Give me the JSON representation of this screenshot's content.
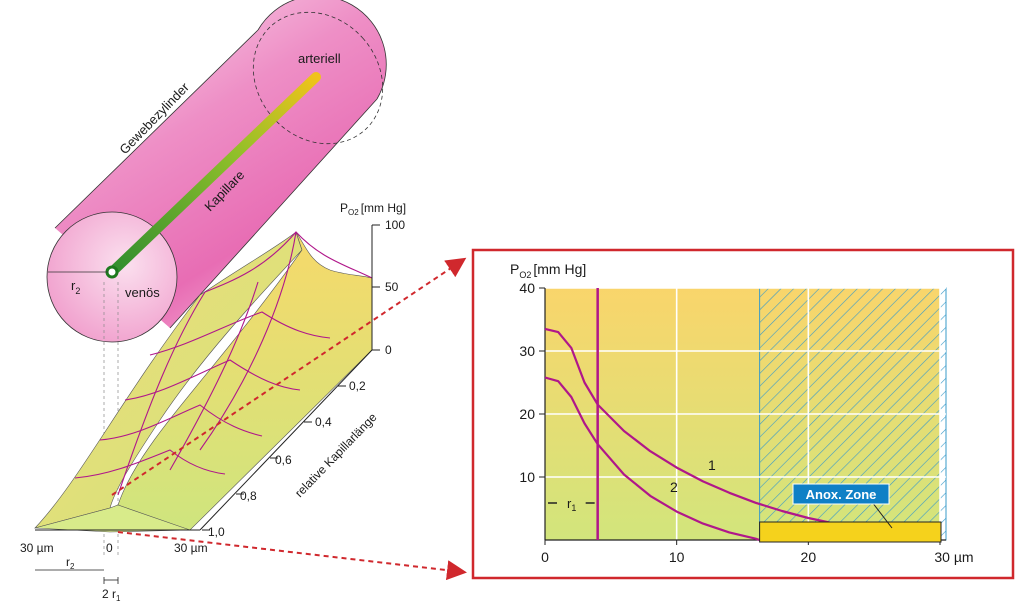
{
  "cylinder": {
    "label_tissue": "Gewebezylinder",
    "label_capillary": "Kapillare",
    "label_arterial": "arteriell",
    "label_venous": "venös",
    "label_r2": "r",
    "label_r2_sub": "2"
  },
  "surface_plot": {
    "z_axis_label_p": "P",
    "z_axis_label_sub": "O2",
    "z_axis_label_unit": "[mm Hg]",
    "z_ticks": [
      "100",
      "50",
      "0"
    ],
    "depth_ticks": [
      "0,2",
      "0,4",
      "0,6",
      "0,8",
      "1,0"
    ],
    "depth_axis_label": "relative Kapillarlänge",
    "x_label_left": "30 µm",
    "x_label_center": "0",
    "x_label_right": "30 µm",
    "r2_label": "r",
    "r2_sub": "2",
    "two_r1_label": "2 r",
    "two_r1_sub": "1"
  },
  "chart_data": {
    "type": "line",
    "ylabel_p": "P",
    "ylabel_sub": "O2",
    "ylabel_unit": "[mm Hg]",
    "y_ticks": [
      "40",
      "30",
      "20",
      "10"
    ],
    "x_ticks": [
      "0",
      "10",
      "20",
      "30 µm"
    ],
    "xlim": [
      0,
      30
    ],
    "ylim": [
      0,
      40
    ],
    "r1_label": "r",
    "r1_sub": "1",
    "r1_x": 4,
    "anox_zone_label": "Anox. Zone",
    "anox_zone_x_start": 16.3,
    "series": [
      {
        "name": "1",
        "x": [
          0,
          1,
          2,
          3,
          4,
          6,
          8,
          10,
          12,
          14,
          16,
          18,
          20,
          22,
          24,
          26,
          28,
          30
        ],
        "values": [
          33.5,
          33,
          30.5,
          25,
          21.5,
          17.3,
          14.1,
          11.5,
          9.3,
          7.5,
          5.9,
          4.6,
          3.5,
          2.6,
          1.8,
          1.1,
          0.5,
          0
        ]
      },
      {
        "name": "2",
        "x": [
          0,
          1,
          2,
          3,
          4,
          6,
          8,
          10,
          12,
          14,
          16,
          16.3
        ],
        "values": [
          25.8,
          25.2,
          22.7,
          18.5,
          15.2,
          10.4,
          7,
          4.5,
          2.6,
          1.2,
          0.2,
          0
        ]
      }
    ],
    "colors": {
      "curve": "#b0178a",
      "anox_badge": "#0f80c6",
      "frame": "#d0282d"
    }
  }
}
